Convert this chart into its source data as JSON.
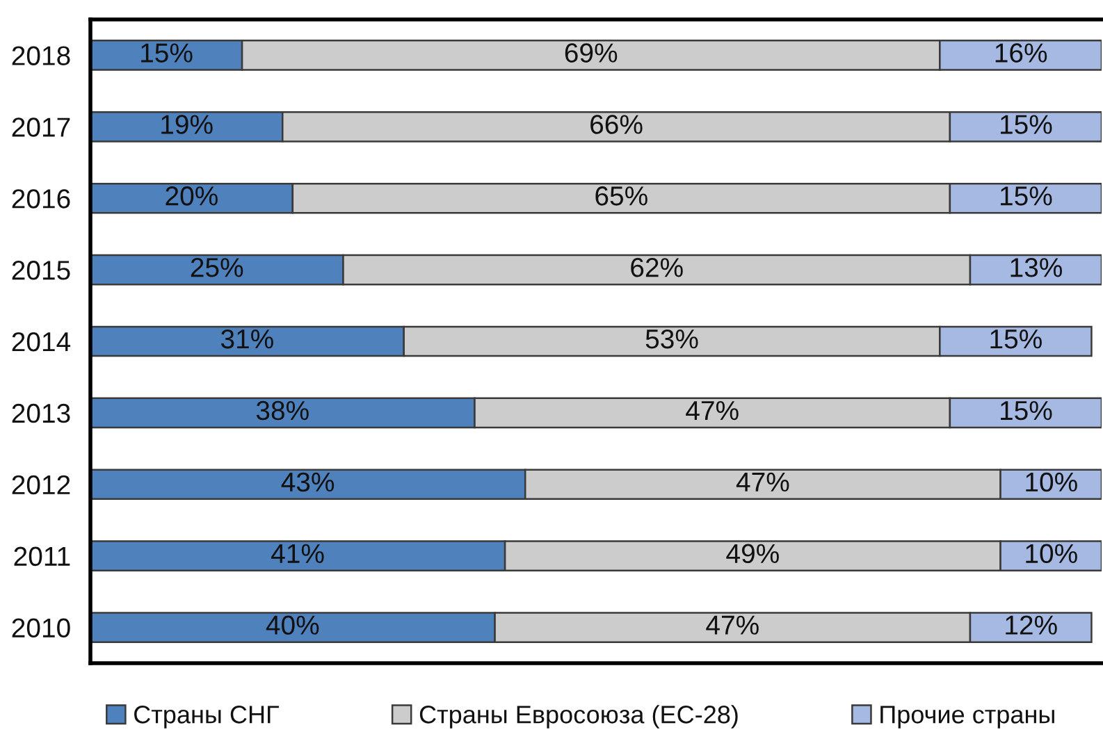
{
  "chart_data": {
    "type": "bar",
    "orientation": "horizontal",
    "stacked": true,
    "categories": [
      "2018",
      "2017",
      "2016",
      "2015",
      "2014",
      "2013",
      "2012",
      "2011",
      "2010"
    ],
    "series": [
      {
        "name": "Страны СНГ",
        "color": "#4f81bd",
        "values": [
          15,
          19,
          20,
          25,
          31,
          38,
          43,
          41,
          40
        ],
        "value_labels": [
          "15%",
          "19%",
          "20%",
          "25%",
          "31%",
          "38%",
          "43%",
          "41%",
          "40%"
        ]
      },
      {
        "name": "Страны Евросоюза (ЕС-28)",
        "color": "#cccccc",
        "values": [
          69,
          66,
          65,
          62,
          53,
          47,
          47,
          49,
          47
        ],
        "value_labels": [
          "69%",
          "66%",
          "65%",
          "62%",
          "53%",
          "47%",
          "47%",
          "49%",
          "47%"
        ]
      },
      {
        "name": "Прочие страны",
        "color": "#a6b9e3",
        "values": [
          16,
          15,
          15,
          13,
          15,
          15,
          10,
          10,
          12
        ],
        "value_labels": [
          "16%",
          "15%",
          "15%",
          "13%",
          "15%",
          "15%",
          "10%",
          "10%",
          "12%"
        ]
      }
    ],
    "xlim": [
      0,
      100
    ],
    "tick_labels": "y",
    "legend": "bottom",
    "grid": false
  }
}
